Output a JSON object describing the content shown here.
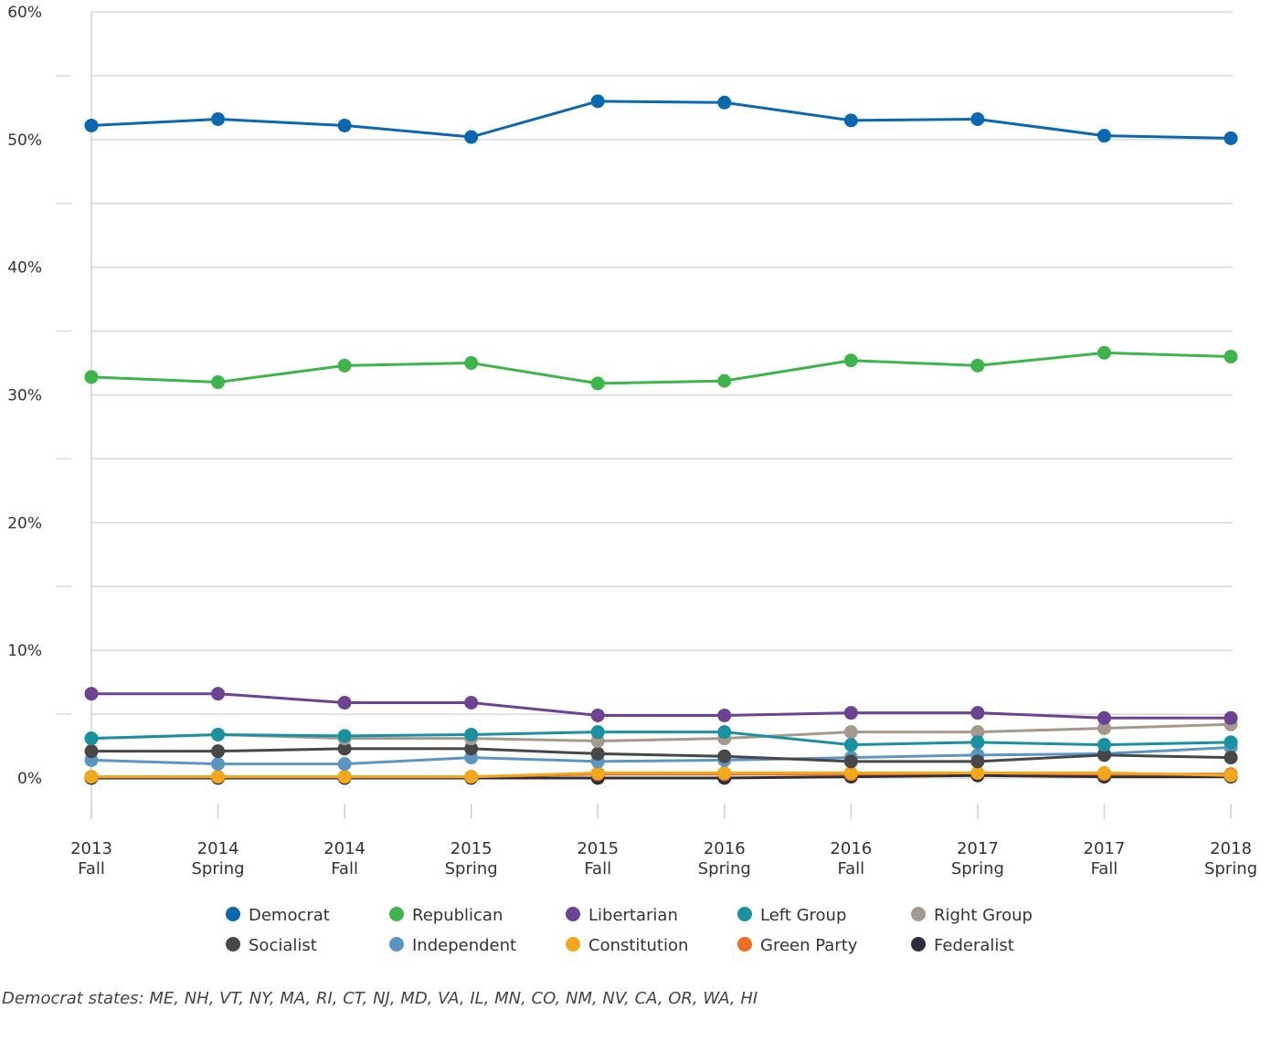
{
  "chart_data": {
    "type": "line",
    "categories": [
      [
        "2013",
        "Fall"
      ],
      [
        "2014",
        "Spring"
      ],
      [
        "2014",
        "Fall"
      ],
      [
        "2015",
        "Spring"
      ],
      [
        "2015",
        "Fall"
      ],
      [
        "2016",
        "Spring"
      ],
      [
        "2016",
        "Fall"
      ],
      [
        "2017",
        "Spring"
      ],
      [
        "2017",
        "Fall"
      ],
      [
        "2018",
        "Spring"
      ]
    ],
    "ylim": [
      0,
      60
    ],
    "yticks": [
      "0%",
      "10%",
      "20%",
      "30%",
      "40%",
      "50%",
      "60%"
    ],
    "grid": true,
    "legend_position": "bottom",
    "series": [
      {
        "name": "Democrat",
        "color": "#0a67b2",
        "values": [
          51.1,
          51.6,
          51.1,
          50.2,
          53.0,
          52.9,
          51.5,
          51.6,
          50.3,
          50.1
        ]
      },
      {
        "name": "Republican",
        "color": "#3db54a",
        "values": [
          31.4,
          31.0,
          32.3,
          32.5,
          30.9,
          31.1,
          32.7,
          32.3,
          33.3,
          33.0
        ]
      },
      {
        "name": "Libertarian",
        "color": "#6b4392",
        "values": [
          6.6,
          6.6,
          5.9,
          5.9,
          4.9,
          4.9,
          5.1,
          5.1,
          4.7,
          4.7
        ]
      },
      {
        "name": "Left Group",
        "color": "#1a91a0",
        "values": [
          3.1,
          3.4,
          3.3,
          3.4,
          3.6,
          3.6,
          2.6,
          2.8,
          2.6,
          2.8
        ]
      },
      {
        "name": "Right Group",
        "color": "#a39a8e",
        "values": [
          3.1,
          3.4,
          3.1,
          3.1,
          2.9,
          3.1,
          3.6,
          3.6,
          3.9,
          4.2
        ]
      },
      {
        "name": "Socialist",
        "color": "#474747",
        "values": [
          2.1,
          2.1,
          2.3,
          2.3,
          1.9,
          1.7,
          1.3,
          1.3,
          1.8,
          1.6
        ]
      },
      {
        "name": "Independent",
        "color": "#5b96c2",
        "values": [
          1.4,
          1.1,
          1.1,
          1.6,
          1.3,
          1.4,
          1.6,
          1.8,
          1.9,
          2.4
        ]
      },
      {
        "name": "Constitution",
        "color": "#f2a81d",
        "values": [
          0.1,
          0.1,
          0.1,
          0.1,
          0.4,
          0.4,
          0.4,
          0.4,
          0.4,
          0.2
        ]
      },
      {
        "name": "Green Party",
        "color": "#f26b21",
        "values": [
          0.1,
          0.1,
          0.1,
          0.1,
          0.3,
          0.3,
          0.3,
          0.4,
          0.3,
          0.3
        ]
      },
      {
        "name": "Federalist",
        "color": "#2e2f3e",
        "values": [
          0.0,
          0.0,
          0.0,
          0.0,
          0.0,
          0.0,
          0.1,
          0.2,
          0.1,
          0.1
        ]
      }
    ]
  },
  "note": "Democrat states: ME, NH, VT, NY, MA, RI, CT, NJ, MD, VA, IL, MN, CO, NM, NV, CA, OR, WA, HI"
}
